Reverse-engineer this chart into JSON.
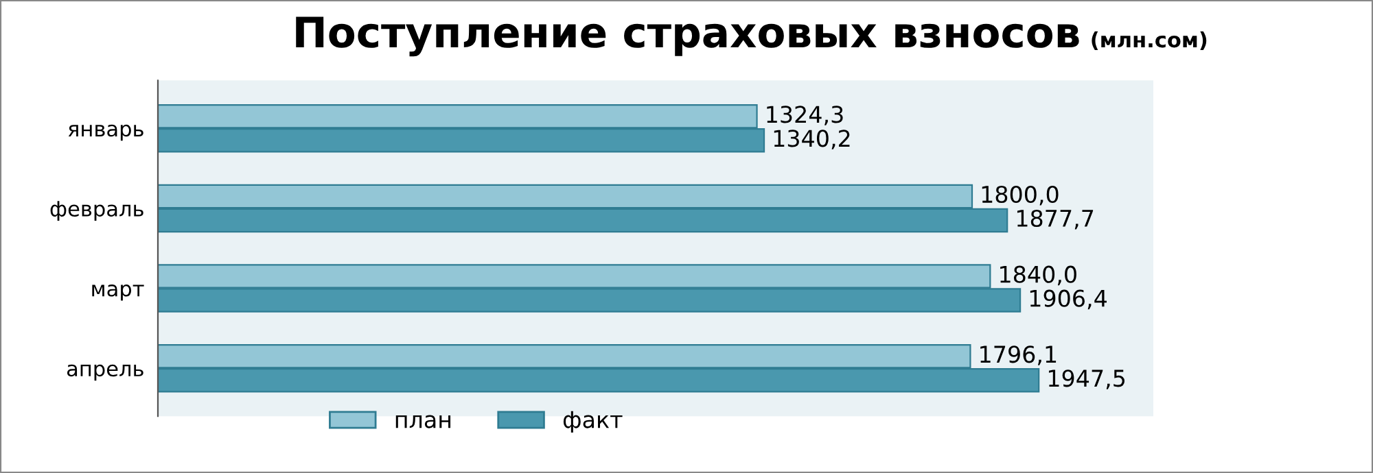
{
  "chart_data": {
    "type": "bar",
    "orientation": "horizontal",
    "title": "Поступление страховых взносов",
    "subtitle": "(млн.сом)",
    "categories": [
      "январь",
      "февраль",
      "март",
      "апрель"
    ],
    "series": [
      {
        "name": "план",
        "color": "#93c6d6",
        "values": [
          1324.3,
          1800.0,
          1840.0,
          1796.1
        ],
        "value_labels": [
          "1324,3",
          "1800,0",
          "1840,0",
          "1796,1"
        ]
      },
      {
        "name": "факт",
        "color": "#4a98ae",
        "values": [
          1340.2,
          1877.7,
          1906.4,
          1947.5
        ],
        "value_labels": [
          "1340,2",
          "1877,7",
          "1906,4",
          "1947,5"
        ]
      }
    ],
    "legend": "bottom",
    "grid": false,
    "tick_labels": "y"
  }
}
